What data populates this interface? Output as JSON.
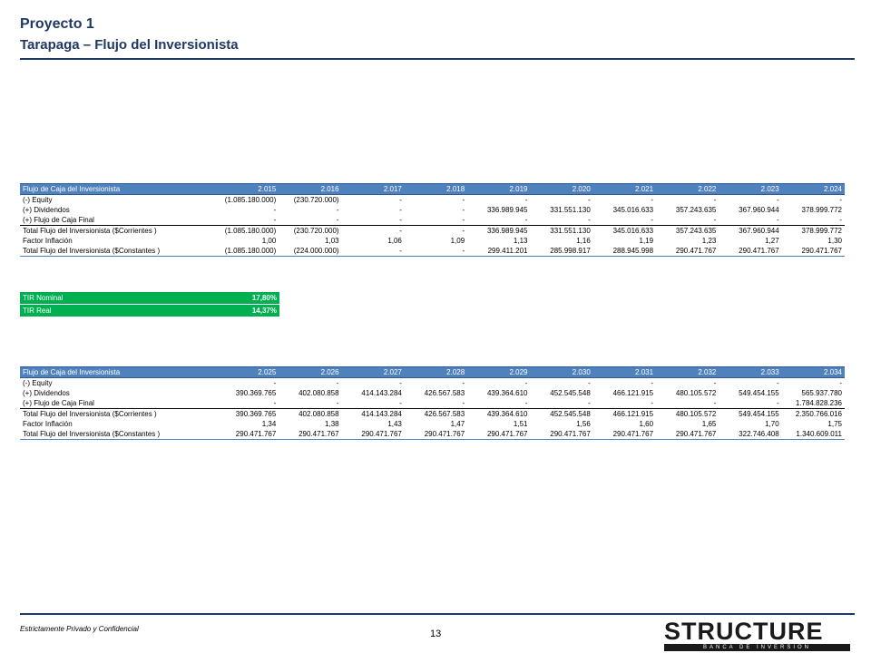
{
  "header": {
    "title": "Proyecto 1",
    "subtitle": "Tarapaga – Flujo del Inversionista"
  },
  "table1": {
    "label": "Flujo de Caja del Inversionista",
    "years": [
      "2.015",
      "2.016",
      "2.017",
      "2.018",
      "2.019",
      "2.020",
      "2.021",
      "2.022",
      "2.023",
      "2.024"
    ],
    "rows": [
      {
        "label": "(-) Equity",
        "values": [
          "(1.085.180.000)",
          "(230.720.000)",
          "-",
          "-",
          "-",
          "-",
          "-",
          "-",
          "-",
          "-"
        ]
      },
      {
        "label": "(+) Dividendos",
        "values": [
          "-",
          "-",
          "-",
          "-",
          "336.989.945",
          "331.551.130",
          "345.016.633",
          "357.243.635",
          "367.960.944",
          "378.999.772"
        ]
      },
      {
        "label": "(+) Flujo de Caja Final",
        "values": [
          "-",
          "-",
          "-",
          "-",
          "-",
          "-",
          "-",
          "-",
          "-",
          "-"
        ]
      },
      {
        "label": "Total Flujo del Inversionista ($Corrientes )",
        "values": [
          "(1.085.180.000)",
          "(230.720.000)",
          "-",
          "-",
          "336.989.945",
          "331.551.130",
          "345.016.633",
          "357.243.635",
          "367.960.944",
          "378.999.772"
        ]
      },
      {
        "label": "Factor Inflación",
        "values": [
          "1,00",
          "1,03",
          "1,06",
          "1,09",
          "1,13",
          "1,16",
          "1,19",
          "1,23",
          "1,27",
          "1,30"
        ]
      },
      {
        "label": "Total Flujo del Inversionista ($Constantes )",
        "values": [
          "(1.085.180.000)",
          "(224.000.000)",
          "-",
          "-",
          "299.411.201",
          "285.998.917",
          "288.945.998",
          "290.471.767",
          "290.471.767",
          "290.471.767"
        ]
      }
    ]
  },
  "tir": [
    {
      "label": "TIR Nominal",
      "value": "17,80%"
    },
    {
      "label": "TIR Real",
      "value": "14,37%"
    }
  ],
  "table2": {
    "label": "Flujo de Caja del Inversionista",
    "years": [
      "2.025",
      "2.026",
      "2.027",
      "2.028",
      "2.029",
      "2.030",
      "2.031",
      "2.032",
      "2.033",
      "2.034"
    ],
    "rows": [
      {
        "label": "(-) Equity",
        "values": [
          "-",
          "-",
          "-",
          "-",
          "-",
          "-",
          "-",
          "-",
          "-",
          "-"
        ]
      },
      {
        "label": "(+) Dividendos",
        "values": [
          "390.369.765",
          "402.080.858",
          "414.143.284",
          "426.567.583",
          "439.364.610",
          "452.545.548",
          "466.121.915",
          "480.105.572",
          "549.454.155",
          "565.937.780"
        ]
      },
      {
        "label": "(+) Flujo de Caja Final",
        "values": [
          "-",
          "-",
          "-",
          "-",
          "-",
          "-",
          "-",
          "-",
          "-",
          "1.784.828.236"
        ]
      },
      {
        "label": "Total Flujo del Inversionista ($Corrientes )",
        "values": [
          "390.369.765",
          "402.080.858",
          "414.143.284",
          "426.567.583",
          "439.364.610",
          "452.545.548",
          "466.121.915",
          "480.105.572",
          "549.454.155",
          "2.350.766.016"
        ]
      },
      {
        "label": "Factor Inflación",
        "values": [
          "1,34",
          "1,38",
          "1,43",
          "1,47",
          "1,51",
          "1,56",
          "1,60",
          "1,65",
          "1,70",
          "1,75"
        ]
      },
      {
        "label": "Total Flujo del Inversionista ($Constantes )",
        "values": [
          "290.471.767",
          "290.471.767",
          "290.471.767",
          "290.471.767",
          "290.471.767",
          "290.471.767",
          "290.471.767",
          "290.471.767",
          "322.746.408",
          "1.340.609.011"
        ]
      }
    ]
  },
  "footer": {
    "confidential": "Estrictamente Privado y Confidencial",
    "page": "13"
  },
  "logo": {
    "word": "STRUCTURE",
    "tagline": "BANCA DE INVERSIÓN"
  }
}
